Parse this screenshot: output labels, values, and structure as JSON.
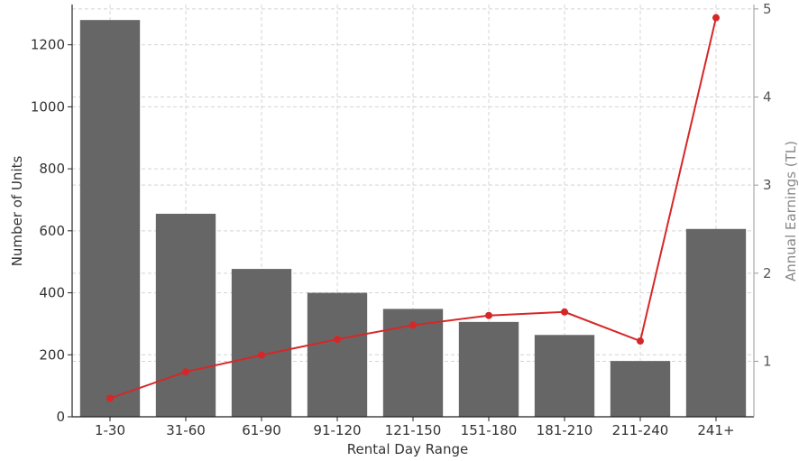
{
  "chart_data": {
    "type": "bar",
    "categories": [
      "1-30",
      "31-60",
      "61-90",
      "91-120",
      "121-150",
      "151-180",
      "181-210",
      "211-240",
      "241+"
    ],
    "series": [
      {
        "name": "",
        "type": "bar",
        "axis": "left",
        "color": "#666666",
        "values": [
          1280,
          655,
          477,
          400,
          348,
          306,
          264,
          180,
          606
        ]
      },
      {
        "name": "",
        "type": "line",
        "axis": "right",
        "color": "#d62728",
        "values": [
          0.58,
          0.88,
          1.07,
          1.25,
          1.41,
          1.52,
          1.56,
          1.23,
          4.9
        ]
      }
    ],
    "title": "",
    "xlabel": "Rental Day Range",
    "ylabel": "Number of Units",
    "y2label": "Annual Earnings (TL)",
    "ylim": [
      0,
      1330
    ],
    "y2lim": [
      0.37,
      5.05
    ],
    "yticks": [
      0,
      200,
      400,
      600,
      800,
      1000,
      1200
    ],
    "y2ticks": [
      1,
      2,
      3,
      4,
      5
    ],
    "grid": true,
    "legend": "none"
  }
}
